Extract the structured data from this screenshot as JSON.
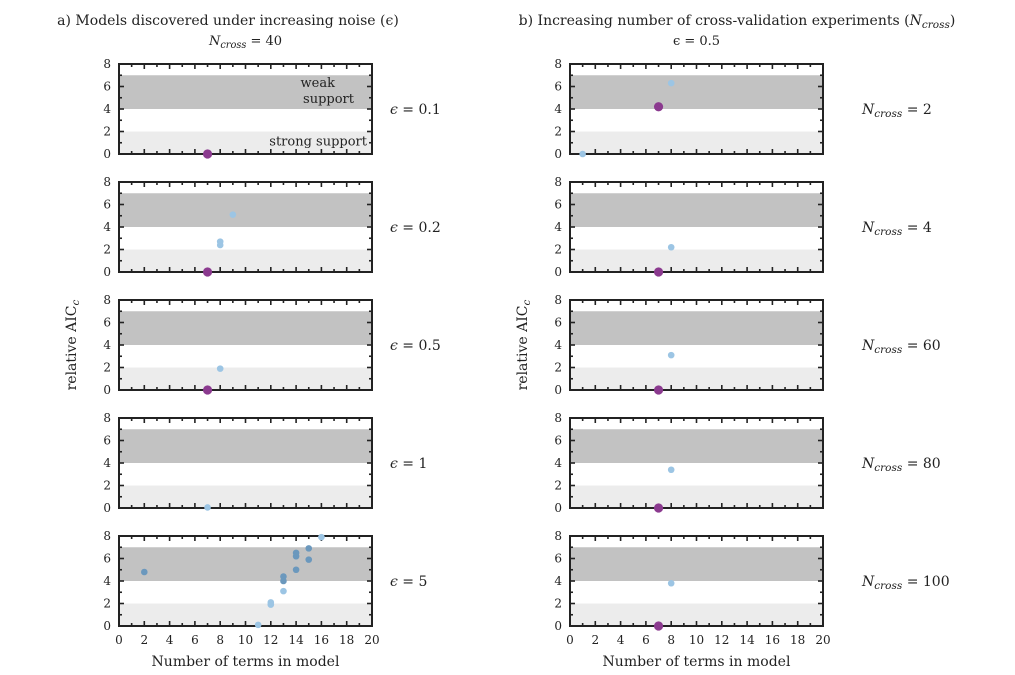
{
  "chart_data": [
    {
      "type": "scatter",
      "title": "a) Models discovered under increasing noise (ϵ)",
      "subtitle": "N_cross = 40",
      "xlabel": "Number of terms in model",
      "ylabel": "relative AIC_c",
      "xlim": [
        0,
        20
      ],
      "ylim": [
        0,
        8
      ],
      "xticks": [
        "0",
        "2",
        "4",
        "6",
        "8",
        "10",
        "12",
        "14",
        "16",
        "18",
        "20"
      ],
      "yticks": [
        "0",
        "2",
        "4",
        "6",
        "8"
      ],
      "bands": {
        "strong": [
          0,
          2
        ],
        "weak": [
          4,
          7
        ]
      },
      "annotations": {
        "weak_line1": "weak",
        "weak_line2": "support",
        "strong": "strong support"
      },
      "panels": [
        {
          "label": "ϵ = 0.1",
          "points": [
            {
              "x": 7,
              "y": 0,
              "kind": "best"
            }
          ]
        },
        {
          "label": "ϵ = 0.2",
          "points": [
            {
              "x": 9,
              "y": 5.1,
              "kind": "other"
            },
            {
              "x": 8,
              "y": 2.7,
              "kind": "other"
            },
            {
              "x": 8,
              "y": 2.4,
              "kind": "other"
            },
            {
              "x": 7,
              "y": 0,
              "kind": "best"
            }
          ]
        },
        {
          "label": "ϵ = 0.5",
          "points": [
            {
              "x": 8,
              "y": 1.9,
              "kind": "other"
            },
            {
              "x": 7,
              "y": 0,
              "kind": "best"
            }
          ]
        },
        {
          "label": "ϵ = 1",
          "points": [
            {
              "x": 7,
              "y": 0.05,
              "kind": "other"
            }
          ]
        },
        {
          "label": "ϵ = 5",
          "points": [
            {
              "x": 2,
              "y": 4.8,
              "kind": "dark"
            },
            {
              "x": 11,
              "y": 0.1,
              "kind": "other"
            },
            {
              "x": 12,
              "y": 2.1,
              "kind": "other"
            },
            {
              "x": 12,
              "y": 1.9,
              "kind": "other"
            },
            {
              "x": 13,
              "y": 3.1,
              "kind": "other"
            },
            {
              "x": 13,
              "y": 4.0,
              "kind": "dark"
            },
            {
              "x": 13,
              "y": 4.4,
              "kind": "dark"
            },
            {
              "x": 14,
              "y": 5.0,
              "kind": "dark"
            },
            {
              "x": 14,
              "y": 6.2,
              "kind": "dark"
            },
            {
              "x": 14,
              "y": 6.5,
              "kind": "dark"
            },
            {
              "x": 15,
              "y": 5.9,
              "kind": "dark"
            },
            {
              "x": 15,
              "y": 6.9,
              "kind": "dark"
            },
            {
              "x": 16,
              "y": 7.9,
              "kind": "other"
            }
          ]
        }
      ]
    },
    {
      "type": "scatter",
      "title": "b) Increasing number of cross-validation experiments (N_cross)",
      "subtitle": "ϵ = 0.5",
      "xlabel": "Number of terms in model",
      "ylabel": "relative AIC_c",
      "xlim": [
        0,
        20
      ],
      "ylim": [
        0,
        8
      ],
      "xticks": [
        "0",
        "2",
        "4",
        "6",
        "8",
        "10",
        "12",
        "14",
        "16",
        "18",
        "20"
      ],
      "yticks": [
        "0",
        "2",
        "4",
        "6",
        "8"
      ],
      "bands": {
        "strong": [
          0,
          2
        ],
        "weak": [
          4,
          7
        ]
      },
      "panels": [
        {
          "label": "N_cross = 2",
          "points": [
            {
              "x": 8,
              "y": 6.3,
              "kind": "other"
            },
            {
              "x": 7,
              "y": 4.2,
              "kind": "best"
            },
            {
              "x": 1,
              "y": 0,
              "kind": "other"
            }
          ]
        },
        {
          "label": "N_cross = 4",
          "points": [
            {
              "x": 8,
              "y": 2.2,
              "kind": "other"
            },
            {
              "x": 7,
              "y": 0,
              "kind": "best"
            }
          ]
        },
        {
          "label": "N_cross = 60",
          "points": [
            {
              "x": 8,
              "y": 3.1,
              "kind": "other"
            },
            {
              "x": 7,
              "y": 0,
              "kind": "best"
            }
          ]
        },
        {
          "label": "N_cross = 80",
          "points": [
            {
              "x": 8,
              "y": 3.4,
              "kind": "other"
            },
            {
              "x": 7,
              "y": 0,
              "kind": "best"
            }
          ]
        },
        {
          "label": "N_cross = 100",
          "points": [
            {
              "x": 8,
              "y": 3.8,
              "kind": "other"
            },
            {
              "x": 7,
              "y": 0,
              "kind": "best"
            }
          ]
        }
      ]
    }
  ],
  "colors": {
    "best": "#8b3a8f",
    "other": "#9cc5e4",
    "dark": "#6b98bd",
    "weak_band": "#c2c2c2",
    "strong_band": "#ececec",
    "axis": "#222222"
  }
}
